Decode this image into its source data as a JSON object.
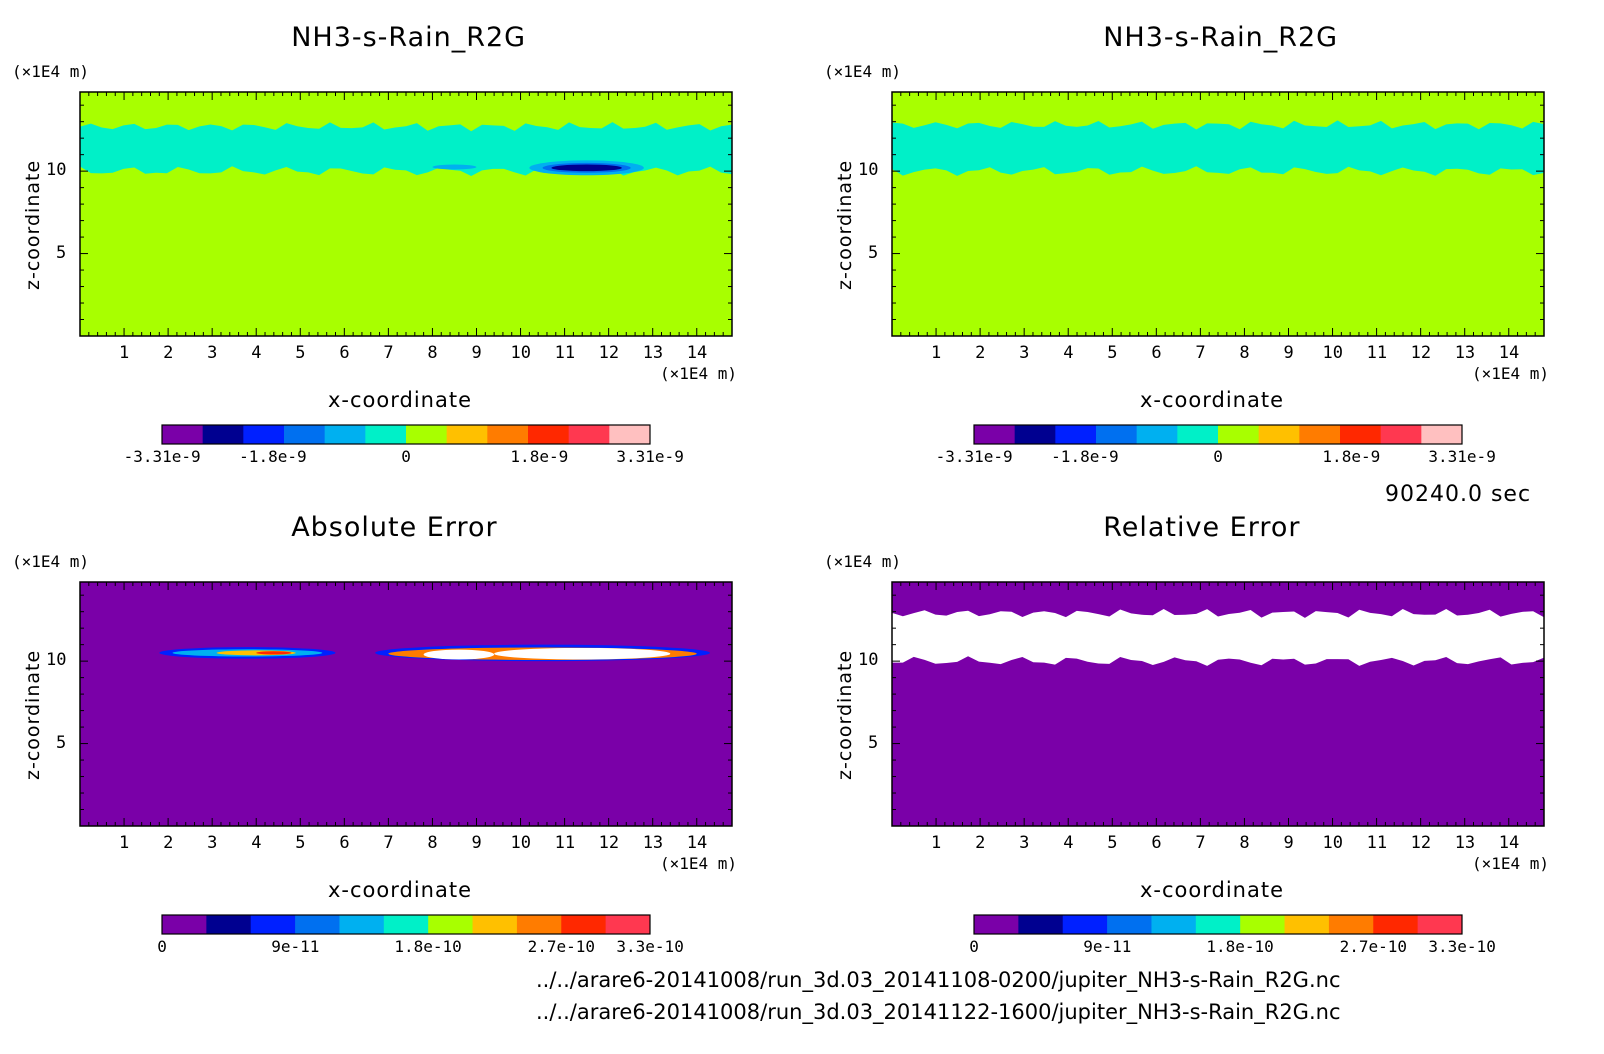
{
  "colors": {
    "purple": "#7a00a8",
    "navy": "#000090",
    "blue": "#0020ff",
    "azure": "#0070f0",
    "sky": "#00b0f0",
    "aqua": "#00f0c8",
    "lime": "#a8ff00",
    "gold": "#ffc000",
    "orange": "#ff7c00",
    "red": "#ff2800",
    "crimson": "#ff3850",
    "pink": "#ffc0c0",
    "white": "#ffffff"
  },
  "time_label": "90240.0 sec",
  "file_paths": [
    "../../arare6-20141008/run_3d.03_20141108-0200/jupiter_NH3-s-Rain_R2G.nc",
    "../../arare6-20141008/run_3d.03_20141122-1600/jupiter_NH3-s-Rain_R2G.nc"
  ],
  "chart_data": [
    {
      "type": "heatmap",
      "title": "NH3-s-Rain_R2G",
      "xlabel": "x-coordinate",
      "ylabel": "z-coordinate",
      "xunit": "(×1E4 m)",
      "yunit": "(×1E4 m)",
      "xlim": [
        0,
        14.8
      ],
      "ylim": [
        0,
        14.8
      ],
      "xticks": [
        "1",
        "2",
        "3",
        "4",
        "5",
        "6",
        "7",
        "8",
        "9",
        "10",
        "11",
        "12",
        "13",
        "14"
      ],
      "yticks": [
        "5",
        "10"
      ],
      "background": "lime",
      "bands": [
        {
          "color": "aqua",
          "z_bottom": 10.0,
          "z_top": 12.7,
          "x_start": 0,
          "x_end": 14.8
        },
        {
          "color": "sky",
          "x_center": 8.5,
          "z_center": 10.25,
          "x_halfwidth": 0.5,
          "z_halfwidth": 0.15
        },
        {
          "color": "sky",
          "x_center": 11.5,
          "z_center": 10.2,
          "x_halfwidth": 1.3,
          "z_halfwidth": 0.45
        },
        {
          "color": "azure",
          "x_center": 11.5,
          "z_center": 10.2,
          "x_halfwidth": 1.0,
          "z_halfwidth": 0.3
        },
        {
          "color": "navy",
          "x_center": 11.5,
          "z_center": 10.2,
          "x_halfwidth": 0.8,
          "z_halfwidth": 0.2
        }
      ],
      "colorbar": {
        "colors": [
          "purple",
          "navy",
          "blue",
          "azure",
          "sky",
          "aqua",
          "lime",
          "gold",
          "orange",
          "red",
          "crimson",
          "pink"
        ],
        "labels": [
          "-3.31e-9",
          "-1.8e-9",
          "0",
          "1.8e-9",
          "3.31e-9"
        ],
        "label_fractions": [
          0,
          0.227,
          0.5,
          0.773,
          1.0
        ]
      }
    },
    {
      "type": "heatmap",
      "title": "NH3-s-Rain_R2G",
      "xlabel": "x-coordinate",
      "ylabel": "z-coordinate",
      "xunit": "(×1E4 m)",
      "yunit": "(×1E4 m)",
      "xlim": [
        0,
        14.8
      ],
      "ylim": [
        0,
        14.8
      ],
      "xticks": [
        "1",
        "2",
        "3",
        "4",
        "5",
        "6",
        "7",
        "8",
        "9",
        "10",
        "11",
        "12",
        "13",
        "14"
      ],
      "yticks": [
        "5",
        "10"
      ],
      "background": "lime",
      "bands": [
        {
          "color": "aqua",
          "z_bottom": 10.0,
          "z_top": 12.8,
          "x_start": 0,
          "x_end": 14.8
        }
      ],
      "colorbar": {
        "colors": [
          "purple",
          "navy",
          "blue",
          "azure",
          "sky",
          "aqua",
          "lime",
          "gold",
          "orange",
          "red",
          "crimson",
          "pink"
        ],
        "labels": [
          "-3.31e-9",
          "-1.8e-9",
          "0",
          "1.8e-9",
          "3.31e-9"
        ],
        "label_fractions": [
          0,
          0.227,
          0.5,
          0.773,
          1.0
        ]
      }
    },
    {
      "type": "heatmap",
      "title": "Absolute Error",
      "xlabel": "x-coordinate",
      "ylabel": "z-coordinate",
      "xunit": "(×1E4 m)",
      "yunit": "(×1E4 m)",
      "xlim": [
        0,
        14.8
      ],
      "ylim": [
        0,
        14.8
      ],
      "xticks": [
        "1",
        "2",
        "3",
        "4",
        "5",
        "6",
        "7",
        "8",
        "9",
        "10",
        "11",
        "12",
        "13",
        "14"
      ],
      "yticks": [
        "5",
        "10"
      ],
      "background": "purple",
      "bands": [
        {
          "color": "blue",
          "x_center": 3.8,
          "z_center": 10.5,
          "x_halfwidth": 2.0,
          "z_halfwidth": 0.35
        },
        {
          "color": "sky",
          "x_center": 3.8,
          "z_center": 10.5,
          "x_halfwidth": 1.7,
          "z_halfwidth": 0.22
        },
        {
          "color": "gold",
          "x_center": 4.0,
          "z_center": 10.5,
          "x_halfwidth": 0.9,
          "z_halfwidth": 0.15
        },
        {
          "color": "red",
          "x_center": 4.4,
          "z_center": 10.5,
          "x_halfwidth": 0.4,
          "z_halfwidth": 0.1
        },
        {
          "color": "blue",
          "x_center": 10.5,
          "z_center": 10.5,
          "x_halfwidth": 3.8,
          "z_halfwidth": 0.5
        },
        {
          "color": "orange",
          "x_center": 10.5,
          "z_center": 10.45,
          "x_halfwidth": 3.5,
          "z_halfwidth": 0.38
        },
        {
          "color": "white",
          "x_center": 8.6,
          "z_center": 10.4,
          "x_halfwidth": 0.8,
          "z_halfwidth": 0.3
        },
        {
          "color": "white",
          "x_center": 11.4,
          "z_center": 10.45,
          "x_halfwidth": 2.0,
          "z_halfwidth": 0.35
        }
      ],
      "colorbar": {
        "colors": [
          "purple",
          "navy",
          "blue",
          "azure",
          "sky",
          "aqua",
          "lime",
          "gold",
          "orange",
          "red",
          "crimson"
        ],
        "labels": [
          "0",
          "9e-11",
          "1.8e-10",
          "2.7e-10",
          "3.3e-10"
        ],
        "label_fractions": [
          0,
          0.273,
          0.545,
          0.818,
          1.0
        ]
      }
    },
    {
      "type": "heatmap",
      "title": "Relative Error",
      "xlabel": "x-coordinate",
      "ylabel": "z-coordinate",
      "xunit": "(×1E4 m)",
      "yunit": "(×1E4 m)",
      "xlim": [
        0,
        14.8
      ],
      "ylim": [
        0,
        14.8
      ],
      "xticks": [
        "1",
        "2",
        "3",
        "4",
        "5",
        "6",
        "7",
        "8",
        "9",
        "10",
        "11",
        "12",
        "13",
        "14"
      ],
      "yticks": [
        "5",
        "10"
      ],
      "background": "purple",
      "bands": [
        {
          "color": "white",
          "z_bottom": 10.0,
          "z_top": 12.9,
          "x_start": 0,
          "x_end": 14.8
        }
      ],
      "colorbar": {
        "colors": [
          "purple",
          "navy",
          "blue",
          "azure",
          "sky",
          "aqua",
          "lime",
          "gold",
          "orange",
          "red",
          "crimson"
        ],
        "labels": [
          "0",
          "9e-11",
          "1.8e-10",
          "2.7e-10",
          "3.3e-10"
        ],
        "label_fractions": [
          0,
          0.273,
          0.545,
          0.818,
          1.0
        ]
      }
    }
  ]
}
